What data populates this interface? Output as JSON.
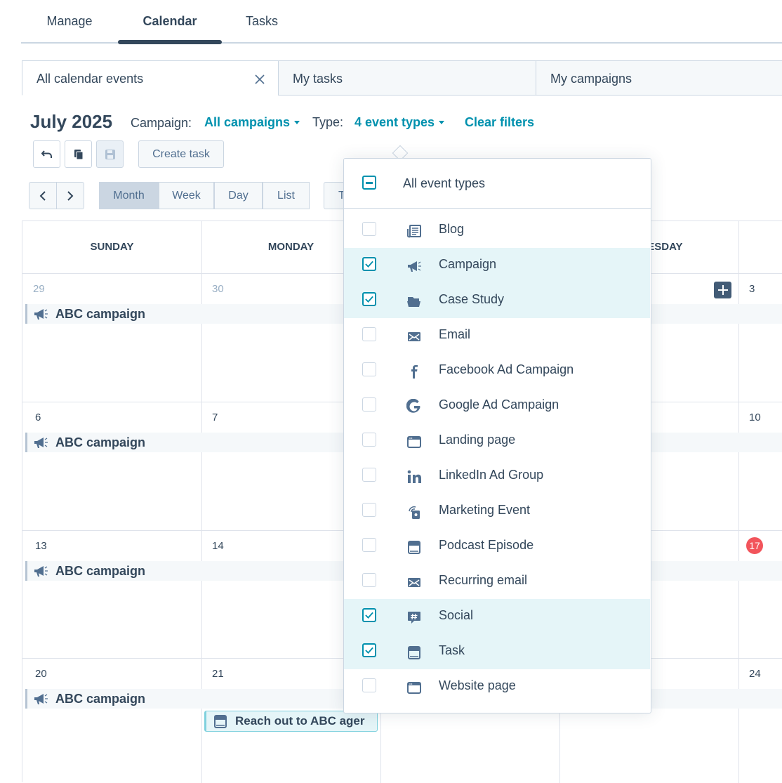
{
  "nav": {
    "tabs": [
      "Manage",
      "Calendar",
      "Tasks"
    ]
  },
  "view_tabs": [
    "All calendar events",
    "My tasks",
    "My campaigns"
  ],
  "header": {
    "month": "July 2025",
    "campaign_label": "Campaign:",
    "campaign_value": "All campaigns",
    "type_label": "Type:",
    "type_value": "4 event types",
    "clear_filters": "Clear filters"
  },
  "toolbar": {
    "create_task": "Create task",
    "views": [
      "Month",
      "Week",
      "Day",
      "List"
    ],
    "today": "Today"
  },
  "calendar": {
    "day_headers": [
      "SUNDAY",
      "MONDAY",
      null,
      "WEDNESDAY",
      null
    ],
    "today": "17",
    "weeks": [
      {
        "days": [
          "29",
          "30",
          null,
          null,
          "3"
        ],
        "event": "ABC campaign"
      },
      {
        "days": [
          "6",
          "7",
          null,
          null,
          "10"
        ],
        "event": "ABC campaign"
      },
      {
        "days": [
          "13",
          "14",
          null,
          null,
          "17"
        ],
        "event": "ABC campaign"
      },
      {
        "days": [
          "20",
          "21",
          null,
          null,
          "24"
        ],
        "event": "ABC campaign",
        "task": "Reach out to ABC ager"
      }
    ]
  },
  "dropdown": {
    "all_label": "All event types",
    "items": [
      {
        "label": "Blog",
        "checked": false
      },
      {
        "label": "Campaign",
        "checked": true
      },
      {
        "label": "Case Study",
        "checked": true
      },
      {
        "label": "Email",
        "checked": false
      },
      {
        "label": "Facebook Ad Campaign",
        "checked": false
      },
      {
        "label": "Google Ad Campaign",
        "checked": false
      },
      {
        "label": "Landing page",
        "checked": false
      },
      {
        "label": "LinkedIn Ad Group",
        "checked": false
      },
      {
        "label": "Marketing Event",
        "checked": false
      },
      {
        "label": "Podcast Episode",
        "checked": false
      },
      {
        "label": "Recurring email",
        "checked": false
      },
      {
        "label": "Social",
        "checked": true
      },
      {
        "label": "Task",
        "checked": true
      },
      {
        "label": "Website page",
        "checked": false
      }
    ]
  }
}
